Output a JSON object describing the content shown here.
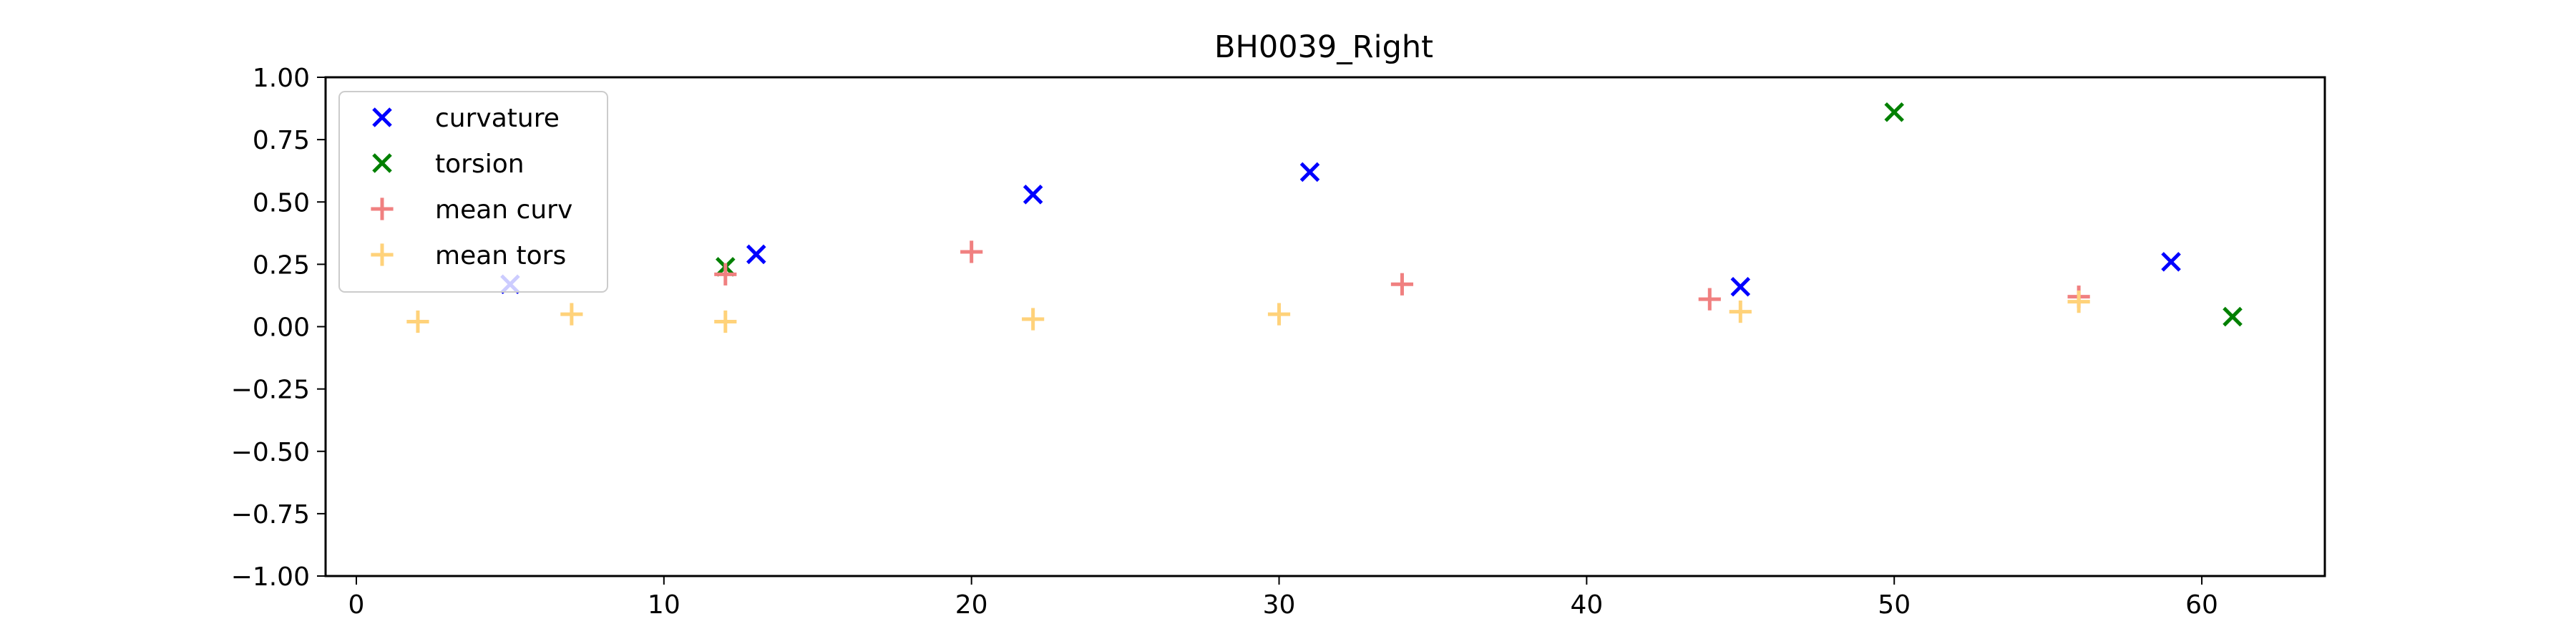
{
  "chart_data": {
    "type": "scatter",
    "title": "BH0039_Right",
    "xlabel": "",
    "ylabel": "",
    "xlim": [
      -1,
      64
    ],
    "ylim": [
      -1.0,
      1.0
    ],
    "xticks": [
      0,
      10,
      20,
      30,
      40,
      50,
      60
    ],
    "xtick_labels": [
      "0",
      "10",
      "20",
      "30",
      "40",
      "50",
      "60"
    ],
    "yticks": [
      -1.0,
      -0.75,
      -0.5,
      -0.25,
      0.0,
      0.25,
      0.5,
      0.75,
      1.0
    ],
    "ytick_labels": [
      "−1.00",
      "−0.75",
      "−0.50",
      "−0.25",
      "0.00",
      "0.25",
      "0.50",
      "0.75",
      "1.00"
    ],
    "grid": false,
    "legend_position": "top-left",
    "series": [
      {
        "name": "curvature",
        "marker": "x",
        "color": "#0000ff",
        "alpha": 1.0,
        "points": [
          [
            5,
            0.17
          ],
          [
            13,
            0.29
          ],
          [
            22,
            0.53
          ],
          [
            31,
            0.62
          ],
          [
            45,
            0.16
          ],
          [
            59,
            0.26
          ]
        ]
      },
      {
        "name": "torsion",
        "marker": "x",
        "color": "#008000",
        "alpha": 1.0,
        "points": [
          [
            12,
            0.24
          ],
          [
            50,
            0.86
          ],
          [
            61,
            0.04
          ]
        ]
      },
      {
        "name": "mean curv",
        "marker": "+",
        "color": "#f08080",
        "alpha": 1.0,
        "points": [
          [
            12,
            0.21
          ],
          [
            20,
            0.3
          ],
          [
            34,
            0.17
          ],
          [
            44,
            0.11
          ],
          [
            56,
            0.12
          ]
        ]
      },
      {
        "name": "mean tors",
        "marker": "+",
        "color": "#ffd27a",
        "alpha": 1.0,
        "points": [
          [
            2,
            0.02
          ],
          [
            7,
            0.05
          ],
          [
            12,
            0.02
          ],
          [
            22,
            0.03
          ],
          [
            30,
            0.05
          ],
          [
            45,
            0.06
          ],
          [
            56,
            0.1
          ]
        ]
      }
    ]
  }
}
